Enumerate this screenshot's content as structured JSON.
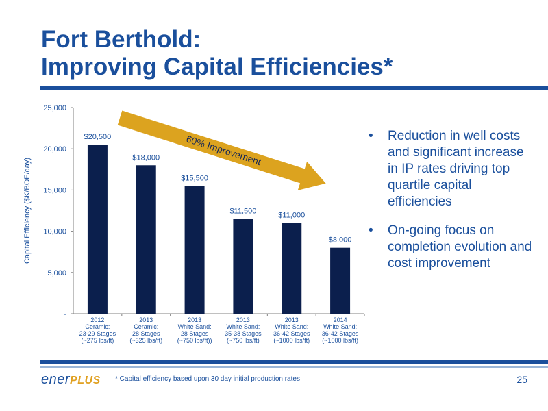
{
  "title": {
    "line1": "Fort Berthold:",
    "line2": "Improving Capital Efficiencies*"
  },
  "bullets": [
    "Reduction in well costs and significant increase in IP rates driving top quartile capital efficiencies",
    "On-going focus on completion evolution and cost improvement"
  ],
  "bullet_glyph": "•",
  "footnote": "* Capital efficiency based upon 30 day initial production rates",
  "page_number": "25",
  "logo": {
    "part1": "ener",
    "part2": "PLUS"
  },
  "chart_data": {
    "type": "bar",
    "ylabel": "Capital Efficiency ($K/BOE/day)",
    "ylim": [
      0,
      25000
    ],
    "yticks": [
      "-",
      "5,000",
      "10,000",
      "15,000",
      "20,000",
      "25,000"
    ],
    "categories": [
      [
        "2012",
        "Ceramic:",
        "23-29 Stages",
        "(~275 lbs/ft)"
      ],
      [
        "2013",
        "Ceramic:",
        "28 Stages",
        "(~325 lbs/ft)"
      ],
      [
        "2013",
        "White Sand:",
        "28 Stages",
        "(~750 lbs/ft))"
      ],
      [
        "2013",
        "White Sand:",
        "35-38 Stages",
        "(~750 lbs/ft)"
      ],
      [
        "2013",
        "White Sand:",
        "36-42 Stages",
        "(~1000 lbs/ft)"
      ],
      [
        "2014",
        "White Sand:",
        "36-42 Stages",
        "(~1000 lbs/ft)"
      ]
    ],
    "values": [
      20500,
      18000,
      15500,
      11500,
      11000,
      8000
    ],
    "data_labels": [
      "$20,500",
      "$18,000",
      "$15,500",
      "$11,500",
      "$11,000",
      "$8,000"
    ],
    "annotation": "60% Improvement",
    "colors": {
      "bar": "#0b1f4d",
      "arrow": "#dca31f",
      "text": "#1a4f9c"
    }
  }
}
